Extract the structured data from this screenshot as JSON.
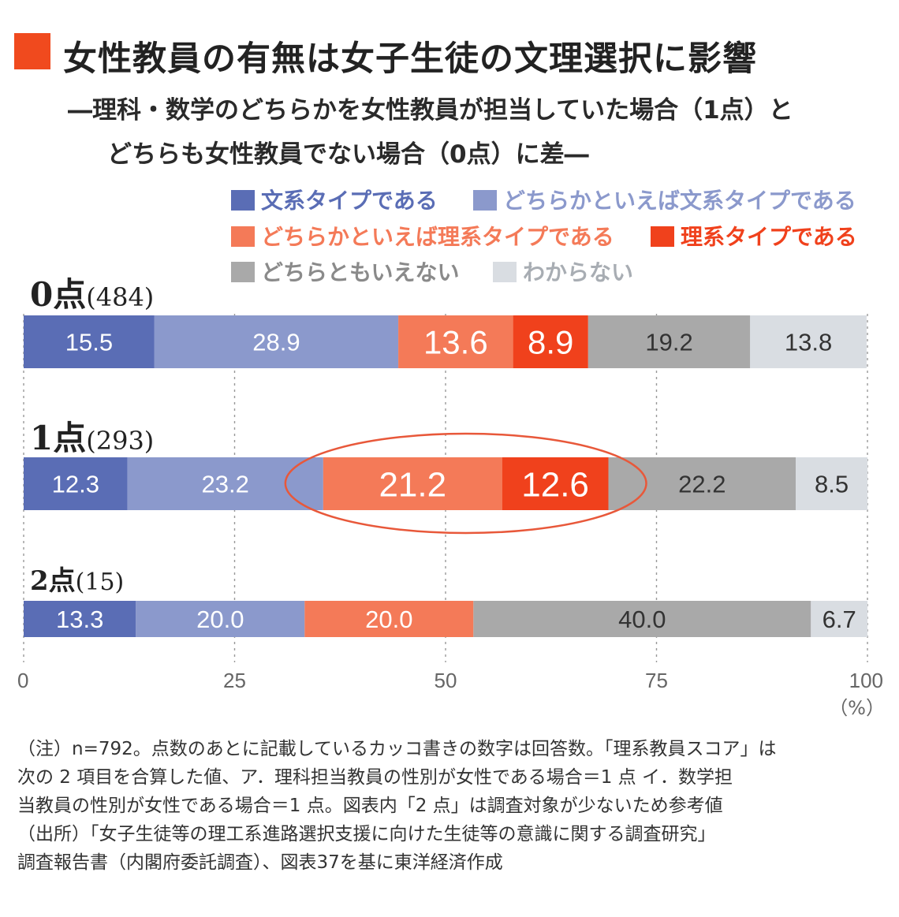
{
  "header": {
    "title": "女性教員の有無は女子生徒の文理選択に影響",
    "subtitle_line1": "―理科・数学のどちらかを女性教員が担当していた場合（1点）と",
    "subtitle_line2": "どちらも女性教員でない場合（0点）に差―"
  },
  "chart_data": {
    "type": "bar",
    "orientation": "horizontal",
    "stacked": true,
    "categories": [
      {
        "label": "0点",
        "n": "(484)"
      },
      {
        "label": "1点",
        "n": "(293)"
      },
      {
        "label": "2点",
        "n": "(15)"
      }
    ],
    "series": [
      {
        "name": "文系タイプである",
        "color": "#5a6db5",
        "text_color": "#ffffff",
        "values": [
          15.5,
          12.3,
          13.3
        ],
        "labels": [
          "15.5",
          "12.3",
          "13.3"
        ]
      },
      {
        "name": "どちらかといえば文系タイプである",
        "color": "#8b99cc",
        "text_color": "#ffffff",
        "values": [
          28.9,
          23.2,
          20.0
        ],
        "labels": [
          "28.9",
          "23.2",
          "20.0"
        ]
      },
      {
        "name": "どちらかといえば理系タイプである",
        "color": "#f47a58",
        "text_color": "#ffffff",
        "values": [
          13.6,
          21.2,
          20.0
        ],
        "labels": [
          "13.6",
          "21.2",
          "20.0"
        ]
      },
      {
        "name": "理系タイプである",
        "color": "#f0411c",
        "text_color": "#ffffff",
        "values": [
          8.9,
          12.6,
          0
        ],
        "labels": [
          "8.9",
          "12.6",
          ""
        ]
      },
      {
        "name": "どちらともいえない",
        "color": "#a9a9a9",
        "text_color": "#333333",
        "values": [
          19.2,
          22.2,
          40.0
        ],
        "labels": [
          "19.2",
          "22.2",
          "40.0"
        ]
      },
      {
        "name": "わからない",
        "color": "#d9dde2",
        "text_color": "#333333",
        "values": [
          13.8,
          8.5,
          6.7
        ],
        "labels": [
          "13.8",
          "8.5",
          "6.7"
        ]
      }
    ],
    "xlim": [
      0,
      100
    ],
    "xticks": [
      "0",
      "25",
      "50",
      "75",
      "100"
    ],
    "xunit": "（%）",
    "grid": true,
    "highlight": {
      "category_index": 1,
      "series_indices": [
        2,
        3
      ],
      "color": "#e8583a"
    }
  },
  "notes": [
    "（注）n=792。点数のあとに記載しているカッコ書きの数字は回答数。「理系教員スコア」は",
    "次の 2 項目を合算した値、ア．理科担当教員の性別が女性である場合＝1 点 イ．数学担",
    "当教員の性別が女性である場合＝1 点。図表内「2 点」は調査対象が少ないため参考値",
    "（出所）「女子生徒等の理工系進路選択支援に向けた生徒等の意識に関する調査研究」",
    "調査報告書（内閣府委託調査）、図表37を基に東洋経済作成"
  ]
}
